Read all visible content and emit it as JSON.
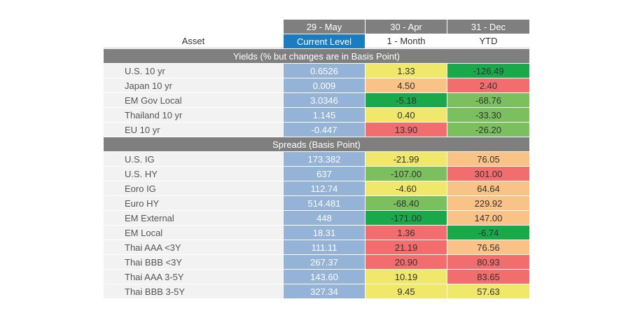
{
  "header": {
    "dates": [
      "29 - May",
      "30 - Apr",
      "31 - Dec"
    ],
    "asset_label": "Asset",
    "current_label": "Current Level",
    "month_label": "1 - Month",
    "ytd_label": "YTD"
  },
  "colors": {
    "dark_green": "#19a84a",
    "green": "#7bbf5e",
    "yellow": "#f0e86a",
    "orange": "#f9c286",
    "red": "#f26d6d",
    "current_blue": "#95b3d7",
    "header_blue": "#1a7cc1",
    "header_gray": "#7f7f7f"
  },
  "sections": [
    {
      "title": "Yields (% but changes are in Basis Point)",
      "rows": [
        {
          "asset": "U.S. 10 yr",
          "current": "0.6526",
          "month": "1.33",
          "month_color": "yellow",
          "ytd": "-126.49",
          "ytd_color": "dark_green"
        },
        {
          "asset": "Japan 10 yr",
          "current": "0.009",
          "month": "4.50",
          "month_color": "orange",
          "ytd": "2.40",
          "ytd_color": "red"
        },
        {
          "asset": "EM Gov Local",
          "current": "3.0346",
          "month": "-5.18",
          "month_color": "dark_green",
          "ytd": "-68.76",
          "ytd_color": "green"
        },
        {
          "asset": "Thailand 10 yr",
          "current": "1.145",
          "month": "0.40",
          "month_color": "yellow",
          "ytd": "-33.30",
          "ytd_color": "green"
        },
        {
          "asset": "EU 10 yr",
          "current": "-0.447",
          "month": "13.90",
          "month_color": "red",
          "ytd": "-26.20",
          "ytd_color": "green"
        }
      ]
    },
    {
      "title": "Spreads (Basis Point)",
      "rows": [
        {
          "asset": "U.S. IG",
          "current": "173.382",
          "month": "-21.99",
          "month_color": "yellow",
          "ytd": "76.05",
          "ytd_color": "orange"
        },
        {
          "asset": "U.S. HY",
          "current": "637",
          "month": "-107.00",
          "month_color": "green",
          "ytd": "301.00",
          "ytd_color": "red"
        },
        {
          "asset": "Eoro IG",
          "current": "112.74",
          "month": "-4.60",
          "month_color": "yellow",
          "ytd": "64.64",
          "ytd_color": "orange"
        },
        {
          "asset": "Euro HY",
          "current": "514.481",
          "month": "-68.40",
          "month_color": "green",
          "ytd": "229.92",
          "ytd_color": "orange"
        },
        {
          "asset": "EM External",
          "current": "448",
          "month": "-171.00",
          "month_color": "dark_green",
          "ytd": "147.00",
          "ytd_color": "orange"
        },
        {
          "asset": "EM Local",
          "current": "18.31",
          "month": "1.36",
          "month_color": "red",
          "ytd": "-6.74",
          "ytd_color": "dark_green"
        },
        {
          "asset": "Thai AAA <3Y",
          "current": "111.11",
          "month": "21.19",
          "month_color": "red",
          "ytd": "76.56",
          "ytd_color": "orange"
        },
        {
          "asset": "Thai BBB <3Y",
          "current": "267.37",
          "month": "20.90",
          "month_color": "red",
          "ytd": "80.93",
          "ytd_color": "red"
        },
        {
          "asset": "Thai AAA 3-5Y",
          "current": "143.60",
          "month": "10.19",
          "month_color": "yellow",
          "ytd": "83.65",
          "ytd_color": "red"
        },
        {
          "asset": "Thai BBB 3-5Y",
          "current": "327.34",
          "month": "9.45",
          "month_color": "yellow",
          "ytd": "57.63",
          "ytd_color": "yellow"
        }
      ]
    }
  ]
}
